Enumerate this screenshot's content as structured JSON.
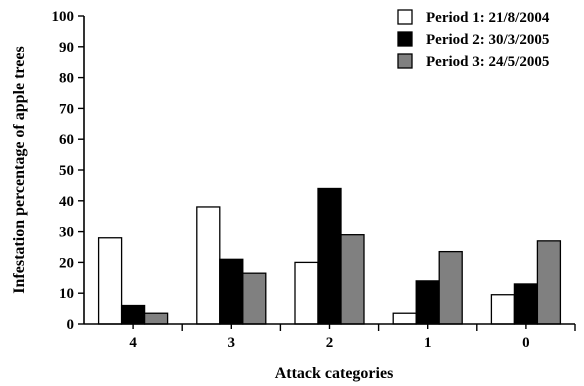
{
  "chart_data": {
    "type": "bar",
    "categories": [
      "4",
      "3",
      "2",
      "1",
      "0"
    ],
    "series": [
      {
        "name": "Period 1: 21/8/2004",
        "values": [
          28,
          38,
          20,
          3.5,
          9.5
        ],
        "color": "#ffffff"
      },
      {
        "name": "Period 2: 30/3/2005",
        "values": [
          6,
          21,
          44,
          14,
          13
        ],
        "color": "#000000"
      },
      {
        "name": "Period 3: 24/5/2005",
        "values": [
          3.5,
          16.5,
          29,
          23.5,
          27
        ],
        "color": "#808080"
      }
    ],
    "xlabel": "Attack categories",
    "ylabel": "Infestation percentage of apple trees",
    "ylim": [
      0,
      100
    ],
    "yticks": [
      "0",
      "10",
      "20",
      "30",
      "40",
      "50",
      "60",
      "70",
      "80",
      "90",
      "100"
    ],
    "grid": false,
    "legend_position": "top-right"
  }
}
